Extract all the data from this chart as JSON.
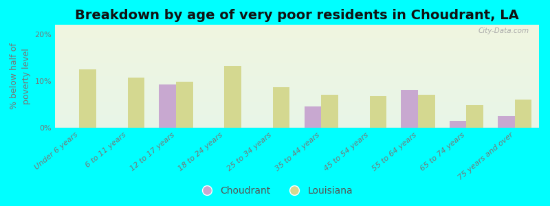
{
  "title": "Breakdown by age of very poor residents in Choudrant, LA",
  "ylabel": "% below half of\npoverty level",
  "categories": [
    "Under 6 years",
    "6 to 11 years",
    "12 to 17 years",
    "18 to 24 years",
    "25 to 34 years",
    "35 to 44 years",
    "45 to 54 years",
    "55 to 64 years",
    "65 to 74 years",
    "75 years and over"
  ],
  "choudrant_values": [
    0,
    0,
    9.2,
    0,
    0,
    4.5,
    0,
    8.0,
    1.5,
    2.5
  ],
  "louisiana_values": [
    12.5,
    10.7,
    9.8,
    13.2,
    8.7,
    7.0,
    6.8,
    7.0,
    4.8,
    6.0
  ],
  "choudrant_color": "#c8a8d0",
  "louisiana_color": "#d4d890",
  "background_color": "#00ffff",
  "grad_top": "#f0f5e0",
  "grad_bottom": "#e8f5e8",
  "ylim": [
    0,
    22
  ],
  "yticks": [
    0,
    10,
    20
  ],
  "ytick_labels": [
    "0%",
    "10%",
    "20%"
  ],
  "bar_width": 0.35,
  "title_fontsize": 14,
  "axis_label_fontsize": 9,
  "tick_fontsize": 8,
  "legend_fontsize": 10
}
